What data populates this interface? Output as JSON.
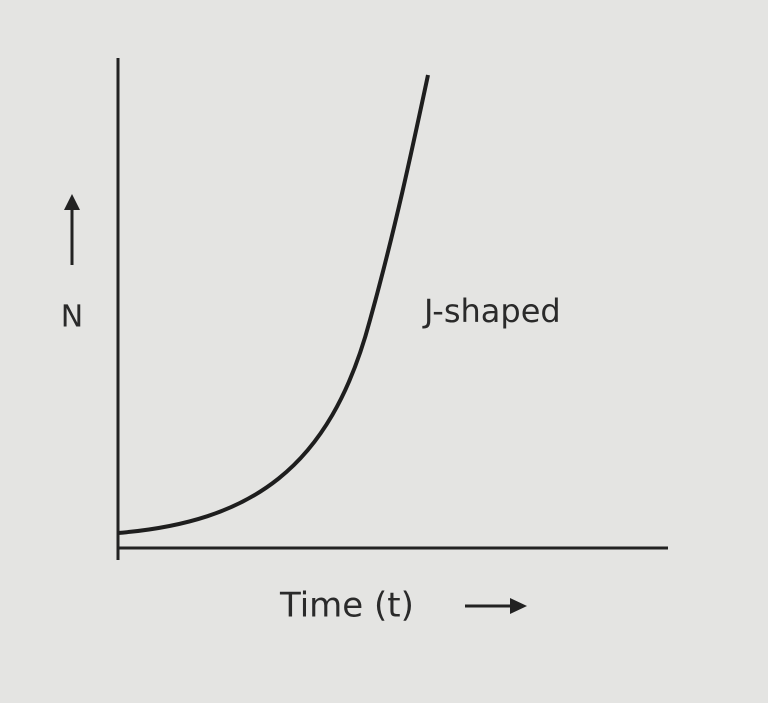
{
  "axes": {
    "y_label": "N",
    "x_label": "Time (t)"
  },
  "curve": {
    "label": "J-shaped"
  }
}
